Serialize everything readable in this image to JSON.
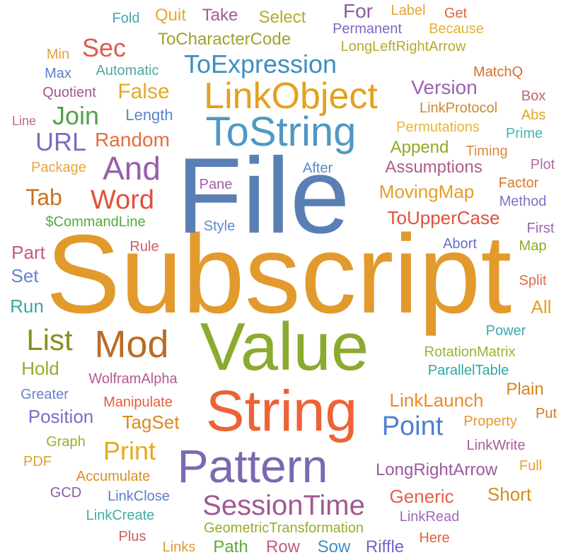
{
  "word_cloud": {
    "words": [
      {
        "text": "Subscript",
        "color": "#e29a2c"
      },
      {
        "text": "File",
        "color": "#5a7fb4"
      },
      {
        "text": "Value",
        "color": "#8aab2d"
      },
      {
        "text": "String",
        "color": "#ed6336"
      },
      {
        "text": "Pattern",
        "color": "#7c68b1"
      },
      {
        "text": "ToString",
        "color": "#4f98c4"
      },
      {
        "text": "LinkObject",
        "color": "#e2a21f"
      },
      {
        "text": "Mod",
        "color": "#b96c26"
      },
      {
        "text": "SessionTime",
        "color": "#a05a91"
      },
      {
        "text": "And",
        "color": "#9460a8"
      },
      {
        "text": "ToExpression",
        "color": "#3d8fbf"
      },
      {
        "text": "Word",
        "color": "#e14f3a"
      },
      {
        "text": "List",
        "color": "#8a8f1d"
      },
      {
        "text": "Point",
        "color": "#4f7fd0"
      },
      {
        "text": "Print",
        "color": "#e8a81f"
      },
      {
        "text": "Join",
        "color": "#54a14c"
      },
      {
        "text": "URL",
        "color": "#7e6bc4"
      },
      {
        "text": "Sec",
        "color": "#df5a4e"
      },
      {
        "text": "Tab",
        "color": "#c7711d"
      },
      {
        "text": "False",
        "color": "#e3a924"
      },
      {
        "text": "Random",
        "color": "#e46d3d"
      },
      {
        "text": "For",
        "color": "#8e58a6"
      },
      {
        "text": "Version",
        "color": "#9b62b1"
      },
      {
        "text": "MovingMap",
        "color": "#e59d2b"
      },
      {
        "text": "LinkLaunch",
        "color": "#ed8a2c"
      },
      {
        "text": "Append",
        "color": "#8eac22"
      },
      {
        "text": "Quit",
        "color": "#e9a72a"
      },
      {
        "text": "Take",
        "color": "#a25a96"
      },
      {
        "text": "Select",
        "color": "#b0ad25"
      },
      {
        "text": "ToCharacterCode",
        "color": "#a0a32a"
      },
      {
        "text": "Assumptions",
        "color": "#b15d8b"
      },
      {
        "text": "ToUpperCase",
        "color": "#e0523f"
      },
      {
        "text": "Position",
        "color": "#7b6ccb"
      },
      {
        "text": "TagSet",
        "color": "#d9891c"
      },
      {
        "text": "LongRightArrow",
        "color": "#9c5a9f"
      },
      {
        "text": "Generic",
        "color": "#e3604a"
      },
      {
        "text": "Short",
        "color": "#d68d1d"
      },
      {
        "text": "Hold",
        "color": "#8fae2b"
      },
      {
        "text": "Run",
        "color": "#3ba5a0"
      },
      {
        "text": "Set",
        "color": "#6a7fcf"
      },
      {
        "text": "Part",
        "color": "#c35a8a"
      },
      {
        "text": "All",
        "color": "#e0a31f"
      },
      {
        "text": "Plain",
        "color": "#d9841e"
      },
      {
        "text": "Path",
        "color": "#5da83e"
      },
      {
        "text": "Row",
        "color": "#c25b87"
      },
      {
        "text": "Sow",
        "color": "#3f8fc4"
      },
      {
        "text": "Riffle",
        "color": "#7466c2"
      },
      {
        "text": "Length",
        "color": "#5b86c7"
      },
      {
        "text": "Automatic",
        "color": "#52a99f"
      },
      {
        "text": "Quotient",
        "color": "#a35691"
      },
      {
        "text": "Max",
        "color": "#5a7fc6"
      },
      {
        "text": "Min",
        "color": "#e3a13a"
      },
      {
        "text": "Fold",
        "color": "#40a8b7"
      },
      {
        "text": "Label",
        "color": "#e6a535"
      },
      {
        "text": "Get",
        "color": "#e0623f"
      },
      {
        "text": "Permanent",
        "color": "#8066c1"
      },
      {
        "text": "Because",
        "color": "#e8b032"
      },
      {
        "text": "LongLeftRightArrow",
        "color": "#b5ac2a"
      },
      {
        "text": "MatchQ",
        "color": "#d86d2a"
      },
      {
        "text": "Box",
        "color": "#c9616b"
      },
      {
        "text": "LinkProtocol",
        "color": "#cf8a2a"
      },
      {
        "text": "Abs",
        "color": "#e3a526"
      },
      {
        "text": "Permutations",
        "color": "#e8b43a"
      },
      {
        "text": "Prime",
        "color": "#47b3b5"
      },
      {
        "text": "Timing",
        "color": "#e08a3a"
      },
      {
        "text": "Plot",
        "color": "#b76aa8"
      },
      {
        "text": "Factor",
        "color": "#d7762a"
      },
      {
        "text": "Method",
        "color": "#7b72c9"
      },
      {
        "text": "First",
        "color": "#9b66ad"
      },
      {
        "text": "Map",
        "color": "#8aae2a"
      },
      {
        "text": "Split",
        "color": "#e06a44"
      },
      {
        "text": "Power",
        "color": "#3fa9b5"
      },
      {
        "text": "RotationMatrix",
        "color": "#97b52c"
      },
      {
        "text": "ParallelTable",
        "color": "#2ea7a7"
      },
      {
        "text": "Put",
        "color": "#cf7a1f"
      },
      {
        "text": "Property",
        "color": "#e39a2f"
      },
      {
        "text": "Full",
        "color": "#e6a426"
      },
      {
        "text": "LinkWrite",
        "color": "#a55e9e"
      },
      {
        "text": "Here",
        "color": "#e2633e"
      },
      {
        "text": "LinkRead",
        "color": "#9b6ab4"
      },
      {
        "text": "GeometricTransformation",
        "color": "#9aad2a"
      },
      {
        "text": "Links",
        "color": "#e39a2b"
      },
      {
        "text": "Plus",
        "color": "#d05a5e"
      },
      {
        "text": "LinkCreate",
        "color": "#3faf9f"
      },
      {
        "text": "GCD",
        "color": "#8e5ba3"
      },
      {
        "text": "LinkClose",
        "color": "#5b7fcb"
      },
      {
        "text": "Accumulate",
        "color": "#d98d24"
      },
      {
        "text": "PDF",
        "color": "#e3a032"
      },
      {
        "text": "Graph",
        "color": "#a0ab2b"
      },
      {
        "text": "Greater",
        "color": "#6a80cb"
      },
      {
        "text": "Manipulate",
        "color": "#e2603f"
      },
      {
        "text": "WolframAlpha",
        "color": "#b25a92"
      },
      {
        "text": "Rule",
        "color": "#d25a6a"
      },
      {
        "text": "Style",
        "color": "#5a8ac9"
      },
      {
        "text": "Abort",
        "color": "#6a6ec9"
      },
      {
        "text": "Pane",
        "color": "#a15ea5"
      },
      {
        "text": "After",
        "color": "#5a88c6"
      },
      {
        "text": "Package",
        "color": "#e8a53a"
      },
      {
        "text": "$CommandLine",
        "color": "#56ab39"
      },
      {
        "text": "Line",
        "color": "#c3658c"
      }
    ]
  }
}
